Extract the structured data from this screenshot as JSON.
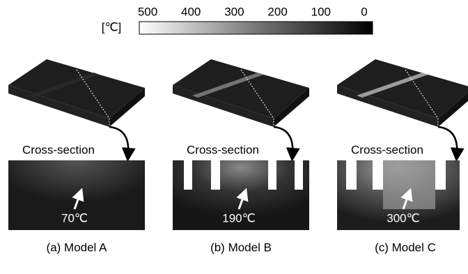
{
  "colorbar": {
    "unit": "[℃]",
    "ticks": [
      500,
      400,
      300,
      200,
      100,
      0
    ]
  },
  "panels": [
    {
      "cross_section": "Cross-section",
      "temperature": "70℃",
      "caption": "(a) Model A"
    },
    {
      "cross_section": "Cross-section",
      "temperature": "190℃",
      "caption": "(b) Model B"
    },
    {
      "cross_section": "Cross-section",
      "temperature": "300℃",
      "caption": "(c) Model C"
    }
  ]
}
